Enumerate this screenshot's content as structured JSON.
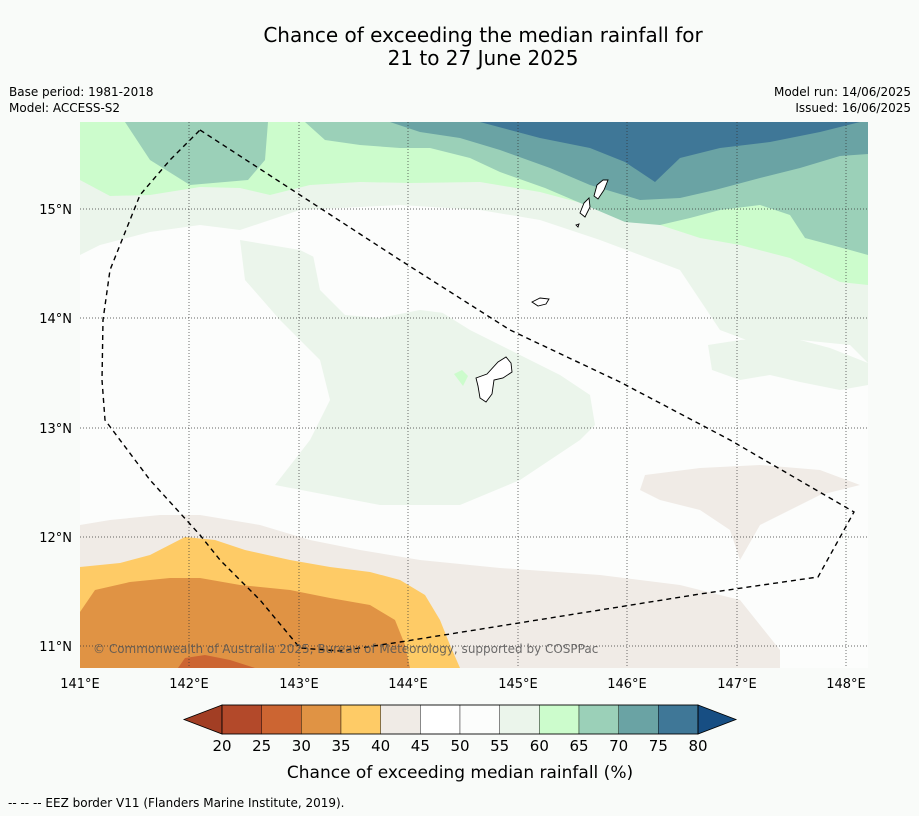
{
  "title": {
    "line1": "Chance of exceeding the median rainfall for",
    "line2": "21 to 27 June 2025"
  },
  "meta": {
    "base_period": "Base period: 1981-2018",
    "model": "Model: ACCESS-S2",
    "model_run": "Model run: 14/06/2025",
    "issued": "Issued: 16/06/2025"
  },
  "map": {
    "lat_labels": [
      "15°N",
      "14°N",
      "13°N",
      "12°N",
      "11°N"
    ],
    "lon_labels": [
      "141°E",
      "142°E",
      "143°E",
      "144°E",
      "145°E",
      "146°E",
      "147°E",
      "148°E"
    ],
    "copyright": "© Commonwealth of Australia 2025, Bureau of Meteorology, supported by COSPPac",
    "eez_label": "EEZ border V11"
  },
  "legend": {
    "ticks": [
      "20",
      "25",
      "30",
      "35",
      "40",
      "45",
      "50",
      "55",
      "60",
      "65",
      "70",
      "75",
      "80"
    ],
    "colors": [
      "#a23e24",
      "#b3492a",
      "#cc6532",
      "#e09344",
      "#fecb66",
      "#f0ebe6",
      "#ffffff",
      "#fcfdfc",
      "#ebf5eb",
      "#ccfccc",
      "#9bd0b8",
      "#6aa3a4",
      "#3f7797",
      "#174e83"
    ],
    "label": "Chance of exceeding median rainfall (%)"
  },
  "footer": "--  --  -- EEZ border V11 (Flanders Marine Institute, 2019)."
}
